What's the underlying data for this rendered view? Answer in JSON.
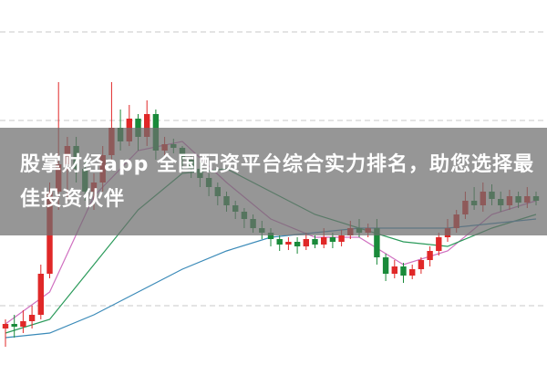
{
  "chart_data": {
    "type": "candlestick",
    "title": "股掌财经app 全国配资平台综合实力排名，助您选择最佳投资伙伴",
    "ylim": [
      0,
      400
    ],
    "up_color": "#e02828",
    "down_color": "#1a8a3a",
    "open": [
      40,
      45,
      42,
      48,
      55,
      100,
      190,
      220,
      240,
      215,
      190,
      200,
      230,
      260,
      245,
      270,
      250,
      275,
      235,
      242,
      238,
      225,
      215,
      205,
      195,
      185,
      175,
      168,
      160,
      150,
      145,
      138,
      132,
      135,
      130,
      138,
      132,
      140,
      135,
      142,
      150,
      145,
      150,
      118,
      100,
      108,
      98,
      105,
      115,
      125,
      140,
      150,
      165,
      180,
      175,
      190,
      182,
      175,
      185,
      178,
      185
    ],
    "close": [
      45,
      42,
      48,
      55,
      100,
      190,
      220,
      240,
      215,
      190,
      200,
      230,
      260,
      245,
      270,
      250,
      275,
      235,
      242,
      238,
      225,
      215,
      205,
      195,
      185,
      175,
      168,
      160,
      150,
      145,
      138,
      132,
      135,
      130,
      138,
      132,
      140,
      135,
      142,
      150,
      145,
      150,
      118,
      100,
      108,
      98,
      105,
      115,
      125,
      140,
      150,
      165,
      180,
      175,
      190,
      182,
      175,
      185,
      178,
      185,
      180
    ],
    "high": [
      50,
      55,
      60,
      65,
      110,
      200,
      310,
      250,
      250,
      225,
      210,
      240,
      310,
      280,
      285,
      275,
      290,
      280,
      250,
      248,
      240,
      230,
      222,
      210,
      200,
      190,
      180,
      172,
      165,
      158,
      150,
      142,
      140,
      140,
      145,
      142,
      150,
      145,
      148,
      158,
      160,
      155,
      160,
      122,
      115,
      112,
      110,
      118,
      130,
      145,
      160,
      170,
      190,
      195,
      200,
      198,
      190,
      192,
      190,
      195,
      190
    ],
    "low": [
      20,
      30,
      35,
      40,
      50,
      95,
      170,
      180,
      200,
      180,
      170,
      190,
      225,
      235,
      240,
      235,
      240,
      225,
      230,
      232,
      215,
      205,
      195,
      185,
      175,
      168,
      160,
      150,
      145,
      138,
      130,
      125,
      126,
      122,
      126,
      128,
      128,
      128,
      130,
      138,
      140,
      140,
      110,
      92,
      95,
      90,
      94,
      100,
      108,
      120,
      135,
      145,
      160,
      170,
      168,
      175,
      168,
      170,
      172,
      172,
      175
    ],
    "series": [
      {
        "color": "#d070c0",
        "x": [
          0,
          5,
          10,
          15,
          20,
          25,
          30,
          35,
          40,
          45,
          50,
          55,
          60
        ],
        "values": [
          45,
          80,
          185,
          235,
          245,
          200,
          160,
          140,
          140,
          110,
          125,
          165,
          180
        ]
      },
      {
        "color": "#2a9a5a",
        "x": [
          0,
          5,
          10,
          15,
          20,
          25,
          30,
          35,
          40,
          45,
          50,
          55,
          60
        ],
        "values": [
          35,
          50,
          110,
          170,
          210,
          215,
          190,
          165,
          150,
          135,
          130,
          150,
          165
        ]
      },
      {
        "color": "#3a8ab8",
        "x": [
          0,
          5,
          10,
          15,
          20,
          25,
          30,
          35,
          40,
          45,
          50,
          55,
          60
        ],
        "values": [
          30,
          35,
          55,
          80,
          105,
          125,
          140,
          145,
          150,
          150,
          150,
          155,
          160
        ]
      }
    ]
  }
}
